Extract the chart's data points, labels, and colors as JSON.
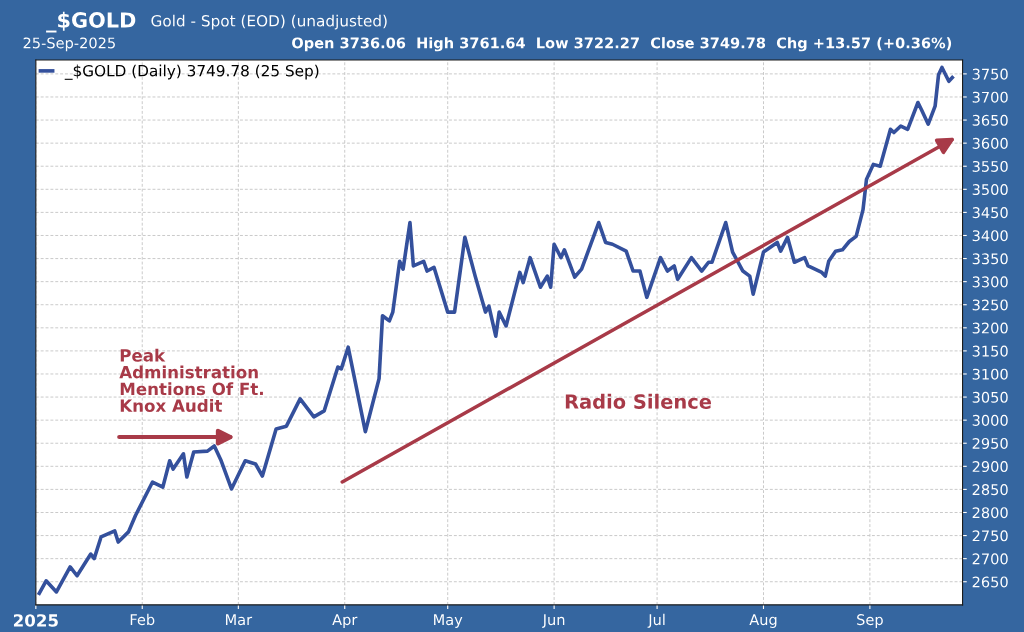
{
  "chart_data": {
    "type": "line",
    "title": "_$GOLD",
    "subtitle": "Gold - Spot (EOD) (unadjusted)",
    "annotations": [
      "25-Sep-2025",
      "Open 3736.06  High 3761.64  Low 3722.27  Close 3749.78  Chg +13.57 (+0.36%)",
      "Peak\nAdministration\nMentions Of Ft.\nKnox Audit",
      "Radio Silence"
    ],
    "x": [
      "2025-01-02",
      "2025-01-04",
      "2025-01-07",
      "2025-01-11",
      "2025-01-13",
      "2025-01-17",
      "2025-01-18",
      "2025-01-20",
      "2025-01-24",
      "2025-01-25",
      "2025-01-28",
      "2025-01-30",
      "2025-02-04",
      "2025-02-07",
      "2025-02-09",
      "2025-02-10",
      "2025-02-13",
      "2025-02-14",
      "2025-02-16",
      "2025-02-20",
      "2025-02-22",
      "2025-02-24",
      "2025-02-27",
      "2025-03-03",
      "2025-03-06",
      "2025-03-08",
      "2025-03-12",
      "2025-03-15",
      "2025-03-19",
      "2025-03-23",
      "2025-03-26",
      "2025-03-30",
      "2025-03-31",
      "2025-04-02",
      "2025-04-07",
      "2025-04-11",
      "2025-04-12",
      "2025-04-14",
      "2025-04-15",
      "2025-04-17",
      "2025-04-18",
      "2025-04-20",
      "2025-04-21",
      "2025-04-24",
      "2025-04-25",
      "2025-04-27",
      "2025-05-01",
      "2025-05-03",
      "2025-05-06",
      "2025-05-09",
      "2025-05-12",
      "2025-05-13",
      "2025-05-15",
      "2025-05-16",
      "2025-05-18",
      "2025-05-22",
      "2025-05-23",
      "2025-05-25",
      "2025-05-28",
      "2025-05-30",
      "2025-05-31",
      "2025-06-01",
      "2025-06-03",
      "2025-06-04",
      "2025-06-07",
      "2025-06-09",
      "2025-06-14",
      "2025-06-16",
      "2025-06-18",
      "2025-06-22",
      "2025-06-24",
      "2025-06-26",
      "2025-06-28",
      "2025-07-02",
      "2025-07-04",
      "2025-07-06",
      "2025-07-07",
      "2025-07-11",
      "2025-07-14",
      "2025-07-16",
      "2025-07-17",
      "2025-07-21",
      "2025-07-23",
      "2025-07-26",
      "2025-07-28",
      "2025-07-29",
      "2025-08-01",
      "2025-08-05",
      "2025-08-06",
      "2025-08-08",
      "2025-08-10",
      "2025-08-13",
      "2025-08-14",
      "2025-08-18",
      "2025-08-19",
      "2025-08-20",
      "2025-08-22",
      "2025-08-24",
      "2025-08-26",
      "2025-08-28",
      "2025-08-30",
      "2025-08-31",
      "2025-09-02",
      "2025-09-04",
      "2025-09-07",
      "2025-09-08",
      "2025-09-10",
      "2025-09-12",
      "2025-09-15",
      "2025-09-16",
      "2025-09-18",
      "2025-09-20",
      "2025-09-21",
      "2025-09-22",
      "2025-09-24",
      "2025-09-25"
    ],
    "series": [
      {
        "name": "_$GOLD (Daily) 3749.78 (25 Sep)",
        "color": "#34509c",
        "values": [
          2625,
          2652,
          2628,
          2682,
          2663,
          2710,
          2700,
          2747,
          2760,
          2736,
          2758,
          2793,
          2866,
          2855,
          2912,
          2894,
          2927,
          2877,
          2931,
          2933,
          2944,
          2912,
          2851,
          2912,
          2905,
          2879,
          2981,
          2987,
          3046,
          3007,
          3020,
          3115,
          3111,
          3158,
          2975,
          3090,
          3226,
          3215,
          3234,
          3344,
          3327,
          3428,
          3334,
          3344,
          3323,
          3331,
          3234,
          3234,
          3396,
          3312,
          3234,
          3247,
          3182,
          3234,
          3204,
          3320,
          3298,
          3352,
          3288,
          3312,
          3288,
          3381,
          3352,
          3369,
          3310,
          3327,
          3428,
          3385,
          3381,
          3366,
          3323,
          3323,
          3266,
          3352,
          3323,
          3334,
          3305,
          3352,
          3323,
          3342,
          3342,
          3428,
          3364,
          3323,
          3312,
          3273,
          3364,
          3385,
          3366,
          3396,
          3342,
          3352,
          3334,
          3320,
          3312,
          3344,
          3366,
          3369,
          3387,
          3398,
          3456,
          3521,
          3554,
          3550,
          3630,
          3623,
          3637,
          3630,
          3688,
          3673,
          3641,
          3680,
          3748,
          3764,
          3734,
          3742
        ]
      }
    ],
    "xlim": [
      "2025-01-01",
      "2025-09-28"
    ],
    "xticks": [
      {
        "value": "2025-01-01",
        "label": "2025"
      },
      {
        "value": "2025-02-01",
        "label": "Feb"
      },
      {
        "value": "2025-03-01",
        "label": "Mar"
      },
      {
        "value": "2025-04-01",
        "label": "Apr"
      },
      {
        "value": "2025-05-01",
        "label": "May"
      },
      {
        "value": "2025-06-01",
        "label": "Jun"
      },
      {
        "value": "2025-07-01",
        "label": "Jul"
      },
      {
        "value": "2025-08-01",
        "label": "Aug"
      },
      {
        "value": "2025-09-01",
        "label": "Sep"
      }
    ],
    "ylim": [
      2600,
      3780
    ],
    "yticks": [
      2650,
      2700,
      2750,
      2800,
      2850,
      2900,
      2950,
      3000,
      3050,
      3100,
      3150,
      3200,
      3250,
      3300,
      3350,
      3400,
      3450,
      3500,
      3550,
      3600,
      3650,
      3700,
      3750
    ],
    "grid": true,
    "legend": "top left",
    "line_style": "solid",
    "marker": "none"
  }
}
